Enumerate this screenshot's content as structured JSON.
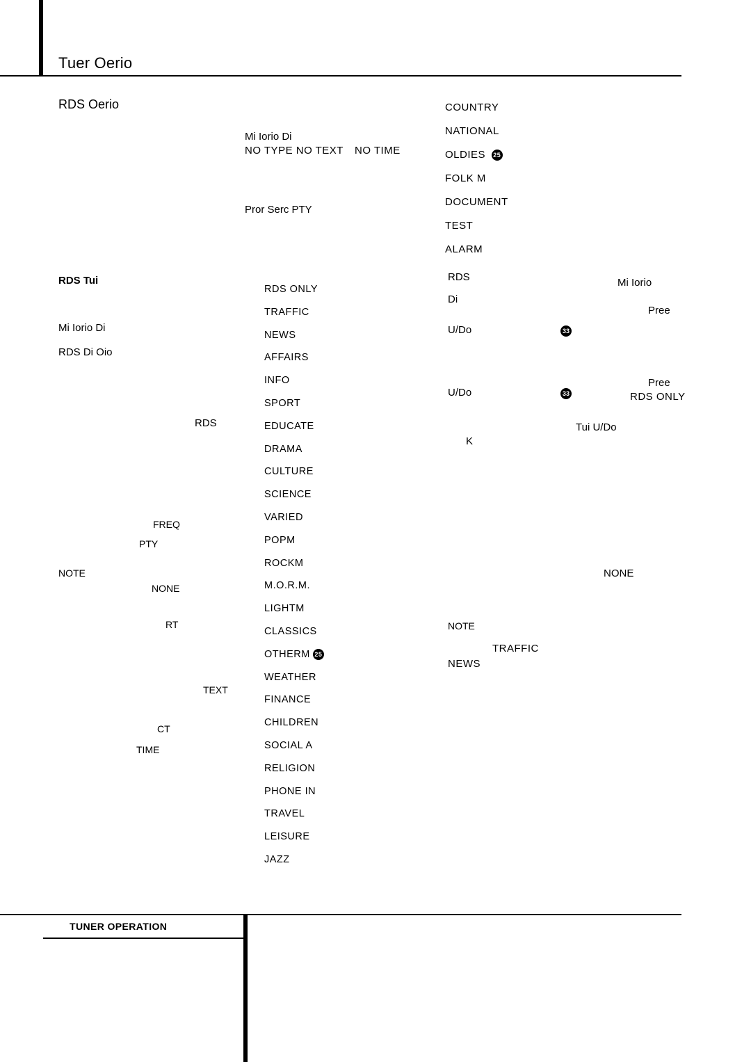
{
  "page": {
    "title": "Tuer Oerio",
    "rds_oerio": "RDS Oerio",
    "mi_iorio_di": "Mi Iorio Di",
    "no_type_text": "NO TYPE  NO TEXT",
    "no_time": "NO TIME",
    "pror_serc": "Pror Serc PTY"
  },
  "right_top": [
    "COUNTRY",
    "NATIONAL",
    "OLDIES",
    "FOLK  M",
    "DOCUMENT",
    "TEST",
    "ALARM"
  ],
  "badge_small": "25",
  "left_labels": {
    "rds_tui": "RDS Tui",
    "mi_iorio_di": "Mi Iorio Di",
    "rds_di_oio": "RDS Di Oio",
    "rds": "RDS",
    "note": "NOTE",
    "freq": "FREQ",
    "pty": "PTY",
    "none": "NONE",
    "rt": "RT",
    "text": "TEXT",
    "ct": "CT",
    "time": "TIME"
  },
  "pty_list": [
    "RDS  ONLY",
    "TRAFFIC",
    "NEWS",
    "AFFAIRS",
    "INFO",
    "SPORT",
    "EDUCATE",
    "DRAMA",
    "CULTURE",
    "SCIENCE",
    "VARIED",
    "POPM",
    "ROCKM",
    "M.O.R.M.",
    "LIGHTM",
    "CLASSICS",
    "OTHERM",
    "WEATHER",
    "FINANCE",
    "CHILDREN",
    "SOCIAL  A",
    "RELIGION",
    "PHONE  IN",
    "TRAVEL",
    "LEISURE",
    "JAZZ"
  ],
  "otherm_badge": "25",
  "right_section": {
    "rds": "RDS",
    "di": "Di",
    "mi_iorio": "Mi Iorio",
    "pree": "Pree",
    "udo": "U/Do",
    "dot33": "33",
    "rdsonly": "RDS ONLY",
    "k": "K",
    "tui_udo": "Tui U/Do",
    "none": "NONE",
    "note": "NOTE",
    "traffic": "TRAFFIC",
    "news": "NEWS"
  },
  "footer": "TUNER OPERATION"
}
